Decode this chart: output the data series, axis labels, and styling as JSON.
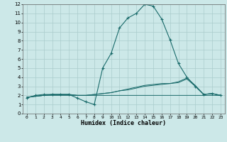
{
  "xlabel": "Humidex (Indice chaleur)",
  "bg_color": "#cce8e8",
  "grid_color": "#aacccc",
  "line_color": "#1a6b6b",
  "xlim": [
    -0.5,
    23.5
  ],
  "ylim": [
    0,
    12
  ],
  "xticks": [
    0,
    1,
    2,
    3,
    4,
    5,
    6,
    7,
    8,
    9,
    10,
    11,
    12,
    13,
    14,
    15,
    16,
    17,
    18,
    19,
    20,
    21,
    22,
    23
  ],
  "yticks": [
    0,
    1,
    2,
    3,
    4,
    5,
    6,
    7,
    8,
    9,
    10,
    11,
    12
  ],
  "series": [
    {
      "x": [
        0,
        1,
        2,
        3,
        4,
        5,
        6,
        7,
        8,
        9,
        10,
        11,
        12,
        13,
        14,
        15,
        16,
        17,
        18,
        19,
        20,
        21,
        22,
        23
      ],
      "y": [
        1.7,
        2.0,
        2.1,
        2.1,
        2.1,
        2.1,
        1.7,
        1.3,
        1.0,
        5.0,
        6.6,
        9.4,
        10.5,
        11.0,
        12.0,
        11.8,
        10.4,
        8.1,
        5.5,
        4.0,
        3.0,
        2.1,
        2.2,
        2.0
      ],
      "marker": true,
      "linestyle": "-"
    },
    {
      "x": [
        0,
        1,
        2,
        3,
        4,
        5,
        6,
        7,
        8,
        9,
        10,
        11,
        12,
        13,
        14,
        15,
        16,
        17,
        18,
        19,
        20,
        21,
        22,
        23
      ],
      "y": [
        1.8,
        1.9,
        2.0,
        2.1,
        2.1,
        2.1,
        2.0,
        2.0,
        2.1,
        2.2,
        2.3,
        2.5,
        2.6,
        2.8,
        3.0,
        3.1,
        3.2,
        3.3,
        3.5,
        3.9,
        3.1,
        2.1,
        2.2,
        2.0
      ],
      "marker": false,
      "linestyle": "-"
    },
    {
      "x": [
        0,
        1,
        2,
        3,
        4,
        5,
        6,
        7,
        8,
        9,
        10,
        11,
        12,
        13,
        14,
        15,
        16,
        17,
        18,
        19,
        20,
        21,
        22,
        23
      ],
      "y": [
        1.8,
        1.9,
        2.0,
        2.1,
        2.1,
        2.1,
        2.0,
        2.0,
        2.1,
        2.2,
        2.3,
        2.5,
        2.7,
        2.9,
        3.1,
        3.2,
        3.3,
        3.3,
        3.4,
        3.8,
        3.0,
        2.1,
        2.2,
        2.0
      ],
      "marker": false,
      "linestyle": "-"
    },
    {
      "x": [
        0,
        1,
        2,
        3,
        4,
        5,
        6,
        7,
        8,
        9,
        10,
        11,
        12,
        13,
        14,
        15,
        16,
        17,
        18,
        19,
        20,
        21,
        22,
        23
      ],
      "y": [
        1.8,
        1.9,
        2.0,
        2.0,
        2.0,
        2.0,
        2.0,
        2.0,
        2.0,
        2.0,
        2.0,
        2.0,
        2.0,
        2.0,
        2.0,
        2.0,
        2.0,
        2.0,
        2.0,
        2.0,
        2.0,
        2.0,
        2.0,
        2.0
      ],
      "marker": false,
      "linestyle": "-"
    }
  ]
}
